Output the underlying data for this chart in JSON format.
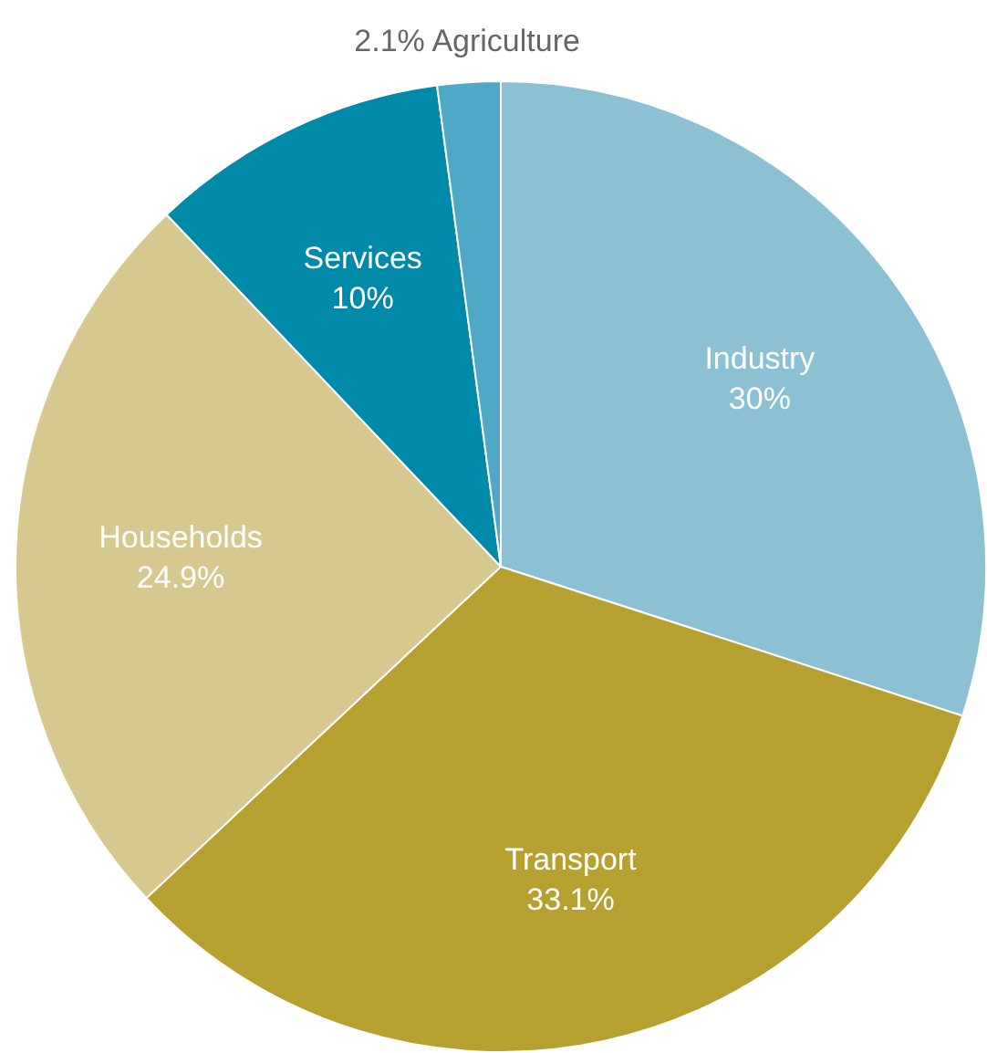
{
  "chart_data": {
    "type": "pie",
    "categories": [
      "Industry",
      "Transport",
      "Households",
      "Services",
      "Agriculture"
    ],
    "values": [
      30,
      33.1,
      24.9,
      10,
      2.1
    ],
    "value_labels": [
      "30%",
      "33.1%",
      "24.9%",
      "10%",
      "2.1%"
    ],
    "colors": [
      "#8bc1d3",
      "#b5a030",
      "#d6c88e",
      "#008aaa",
      "#4fa9c6"
    ],
    "legend": false
  }
}
